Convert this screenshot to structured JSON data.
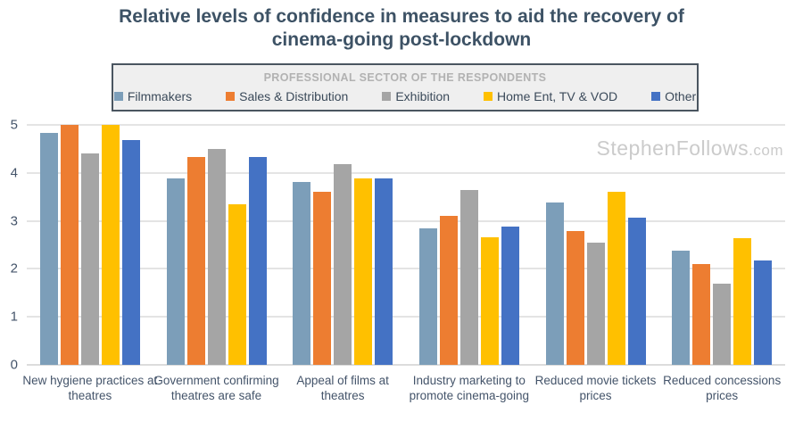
{
  "title": {
    "lines": [
      "Relative levels of confidence in measures to aid the recovery of",
      "cinema-going post-lockdown"
    ]
  },
  "watermark": {
    "main": "StephenFollows",
    "suffix": ".com"
  },
  "legend": {
    "title": "PROFESSIONAL SECTOR OF THE RESPONDENTS",
    "items": [
      {
        "label": "Filmmakers",
        "color": "#7C9EB9"
      },
      {
        "label": "Sales & Distribution",
        "color": "#ED7D31"
      },
      {
        "label": "Exhibition",
        "color": "#A5A5A5"
      },
      {
        "label": "Home Ent, TV & VOD",
        "color": "#FFC000"
      },
      {
        "label": "Other",
        "color": "#4472C4"
      }
    ]
  },
  "chart_data": {
    "type": "bar",
    "title": "Relative levels of confidence in measures to aid the recovery of cinema-going post-lockdown",
    "categories": [
      "New hygiene practices at theatres",
      "Government confirming theatres are safe",
      "Appeal of films at theatres",
      "Industry marketing to promote cinema-going",
      "Reduced movie tickets prices",
      "Reduced concessions prices"
    ],
    "series": [
      {
        "name": "Filmmakers",
        "color": "#7C9EB9",
        "values": [
          4.83,
          3.88,
          3.81,
          2.85,
          3.38,
          2.38
        ]
      },
      {
        "name": "Sales & Distribution",
        "color": "#ED7D31",
        "values": [
          5.0,
          4.33,
          3.61,
          3.11,
          2.79,
          2.1
        ]
      },
      {
        "name": "Exhibition",
        "color": "#A5A5A5",
        "values": [
          4.4,
          4.49,
          4.18,
          3.64,
          2.55,
          1.7
        ]
      },
      {
        "name": "Home Ent, TV & VOD",
        "color": "#FFC000",
        "values": [
          5.0,
          3.35,
          3.88,
          2.65,
          3.61,
          2.64
        ]
      },
      {
        "name": "Other",
        "color": "#4472C4",
        "values": [
          4.68,
          4.33,
          3.88,
          2.88,
          3.06,
          2.17
        ]
      }
    ],
    "xlabel": "",
    "ylabel": "",
    "ylim": [
      0,
      5
    ],
    "yticks": [
      0,
      1,
      2,
      3,
      4,
      5
    ],
    "grid": true,
    "legend_position": "top",
    "legend_title": "PROFESSIONAL SECTOR OF THE RESPONDENTS"
  }
}
